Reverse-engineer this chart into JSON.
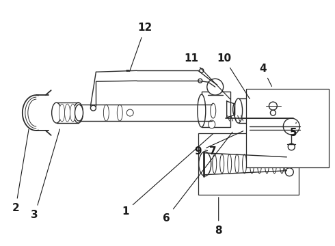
{
  "bg_color": "#ffffff",
  "line_color": "#2a2a2a",
  "figsize": [
    4.9,
    3.6
  ],
  "dpi": 100,
  "label_positions": {
    "1": [
      1.82,
      0.52,
      2.05,
      0.72
    ],
    "2": [
      0.14,
      0.82,
      0.18,
      1.1
    ],
    "3": [
      0.36,
      0.72,
      0.46,
      0.95
    ],
    "4": [
      3.85,
      2.58,
      3.8,
      2.42
    ],
    "5": [
      4.2,
      2.22,
      4.08,
      2.1
    ],
    "6": [
      2.4,
      0.55,
      2.4,
      0.72
    ],
    "7": [
      3.12,
      1.55,
      3.05,
      1.42
    ],
    "8": [
      3.2,
      0.32,
      3.2,
      0.42
    ],
    "9": [
      2.9,
      1.55,
      2.85,
      1.42
    ],
    "10": [
      3.28,
      2.72,
      3.2,
      2.48
    ],
    "11": [
      2.82,
      2.72,
      2.72,
      2.48
    ],
    "12": [
      2.12,
      3.18,
      1.9,
      2.92
    ]
  }
}
